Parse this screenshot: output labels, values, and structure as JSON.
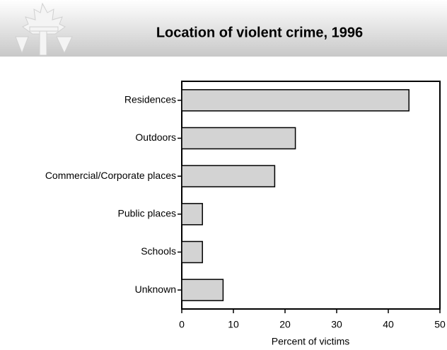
{
  "chart_data": {
    "type": "bar",
    "horizontal": true,
    "title": "Location of violent crime, 1996",
    "categories": [
      "Residences",
      "Outdoors",
      "Commercial/Corporate places",
      "Public places",
      "Schools",
      "Unknown"
    ],
    "values": [
      44,
      22,
      18,
      4,
      4,
      8
    ],
    "color": "#d3d3d3",
    "xlim": [
      0,
      50
    ],
    "xticks": [
      0,
      10,
      20,
      30,
      40,
      50
    ],
    "xlabel": "Percent of victims"
  }
}
